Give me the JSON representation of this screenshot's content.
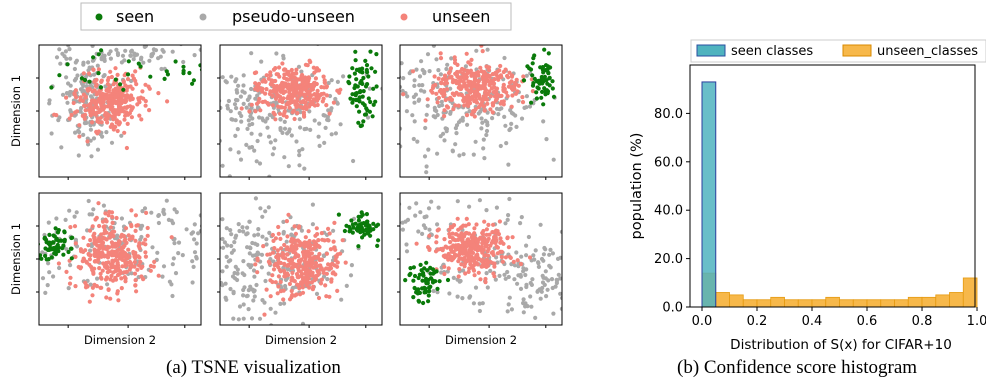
{
  "tsne": {
    "legend": [
      {
        "label": "seen",
        "color": "#0a7a0a"
      },
      {
        "label": "pseudo-unseen",
        "color": "#a9a9a9"
      },
      {
        "label": "unseen",
        "color": "#f4837a"
      }
    ],
    "xlabel": "Dimension 2",
    "ylabel": "Dimension 1",
    "caption": "(a)  TSNE visualization"
  },
  "chart_data": {
    "type": "bar",
    "xlabel": "Distribution of S(x) for CIFAR+10",
    "ylabel": "population (%)",
    "xlim": [
      0.0,
      1.0
    ],
    "ylim": [
      0.0,
      100.0
    ],
    "xticks": [
      "0.0",
      "0.2",
      "0.4",
      "0.6",
      "0.8",
      "1.0"
    ],
    "yticks": [
      "0.0",
      "20.0",
      "40.0",
      "60.0",
      "80.0"
    ],
    "bin_width": 0.05,
    "bin_starts": [
      0.0,
      0.05,
      0.1,
      0.15,
      0.2,
      0.25,
      0.3,
      0.35,
      0.4,
      0.45,
      0.5,
      0.55,
      0.6,
      0.65,
      0.7,
      0.75,
      0.8,
      0.85,
      0.9,
      0.95
    ],
    "series": [
      {
        "name": "seen classes",
        "color": "#4fb3bf",
        "values": [
          93,
          0,
          0,
          0,
          0,
          0,
          0,
          0,
          0,
          0,
          0,
          0,
          0,
          0,
          0,
          0,
          0,
          0,
          0,
          0
        ]
      },
      {
        "name": "unseen_classes",
        "color": "#f7b84a",
        "values": [
          14,
          6,
          5,
          3,
          3,
          4,
          3,
          3,
          3,
          4,
          3,
          3,
          3,
          3,
          3,
          4,
          4,
          5,
          6,
          12
        ]
      }
    ],
    "legend_position": "top",
    "caption": "(b)  Confidence score histogram"
  }
}
